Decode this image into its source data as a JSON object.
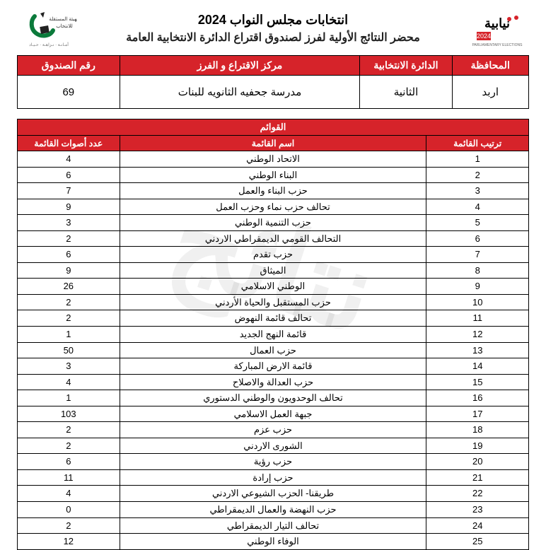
{
  "header": {
    "title1": "انتخابات مجلس النواب 2024",
    "title2": "محضر النتائج الأولية لفرز لصندوق اقتراع الدائرة الانتخابية العامة"
  },
  "info": {
    "headers": {
      "governorate": "المحافظة",
      "district": "الدائرة الانتخابية",
      "center": "مركز الاقتراع و الفرز",
      "box": "رقم الصندوق"
    },
    "values": {
      "governorate": "اربد",
      "district": "الثانية",
      "center": "مدرسة جحفيه الثانويه للبنات",
      "box": "69"
    }
  },
  "lists": {
    "section_title": "القوائم",
    "headers": {
      "rank": "ترتيب القائمة",
      "name": "اسم القائمة",
      "votes": "عدد أصوات القائمة"
    },
    "rows": [
      {
        "rank": "1",
        "name": "الاتحاد الوطني",
        "votes": "4"
      },
      {
        "rank": "2",
        "name": "البناء الوطني",
        "votes": "6"
      },
      {
        "rank": "3",
        "name": "حزب البناء والعمل",
        "votes": "7"
      },
      {
        "rank": "4",
        "name": "تحالف حزب نماء وحزب العمل",
        "votes": "9"
      },
      {
        "rank": "5",
        "name": "حزب التنمية الوطني",
        "votes": "3"
      },
      {
        "rank": "6",
        "name": "التحالف القومي الديمقراطي الاردني",
        "votes": "2"
      },
      {
        "rank": "7",
        "name": "حزب تقدم",
        "votes": "6"
      },
      {
        "rank": "8",
        "name": "الميثاق",
        "votes": "9"
      },
      {
        "rank": "9",
        "name": "الوطني الاسلامي",
        "votes": "26"
      },
      {
        "rank": "10",
        "name": "حزب المستقبل والحياة الأردني",
        "votes": "2"
      },
      {
        "rank": "11",
        "name": "تحالف قائمة النهوض",
        "votes": "2"
      },
      {
        "rank": "12",
        "name": "قائمة النهج الجديد",
        "votes": "1"
      },
      {
        "rank": "13",
        "name": "حزب العمال",
        "votes": "50"
      },
      {
        "rank": "14",
        "name": "قائمة الارض المباركة",
        "votes": "3"
      },
      {
        "rank": "15",
        "name": "حزب العدالة والاصلاح",
        "votes": "4"
      },
      {
        "rank": "16",
        "name": "تحالف الوحدويون والوطني الدستوري",
        "votes": "1"
      },
      {
        "rank": "17",
        "name": "جبهة العمل الاسلامي",
        "votes": "103"
      },
      {
        "rank": "18",
        "name": "حزب عزم",
        "votes": "2"
      },
      {
        "rank": "19",
        "name": "الشورى الاردني",
        "votes": "2"
      },
      {
        "rank": "20",
        "name": "حزب رؤية",
        "votes": "6"
      },
      {
        "rank": "21",
        "name": "حزب إرادة",
        "votes": "11"
      },
      {
        "rank": "22",
        "name": "طريقنا- الحزب الشيوعي الاردني",
        "votes": "4"
      },
      {
        "rank": "23",
        "name": "حزب النهضة والعمال الديمقراطي",
        "votes": "0"
      },
      {
        "rank": "24",
        "name": "تحالف التيار الديمقراطي",
        "votes": "2"
      },
      {
        "rank": "25",
        "name": "الوفاء الوطني",
        "votes": "12"
      }
    ]
  },
  "watermark_text": "نتائج",
  "colors": {
    "header_bg": "#d6232a",
    "header_fg": "#ffffff",
    "border": "#000000"
  }
}
